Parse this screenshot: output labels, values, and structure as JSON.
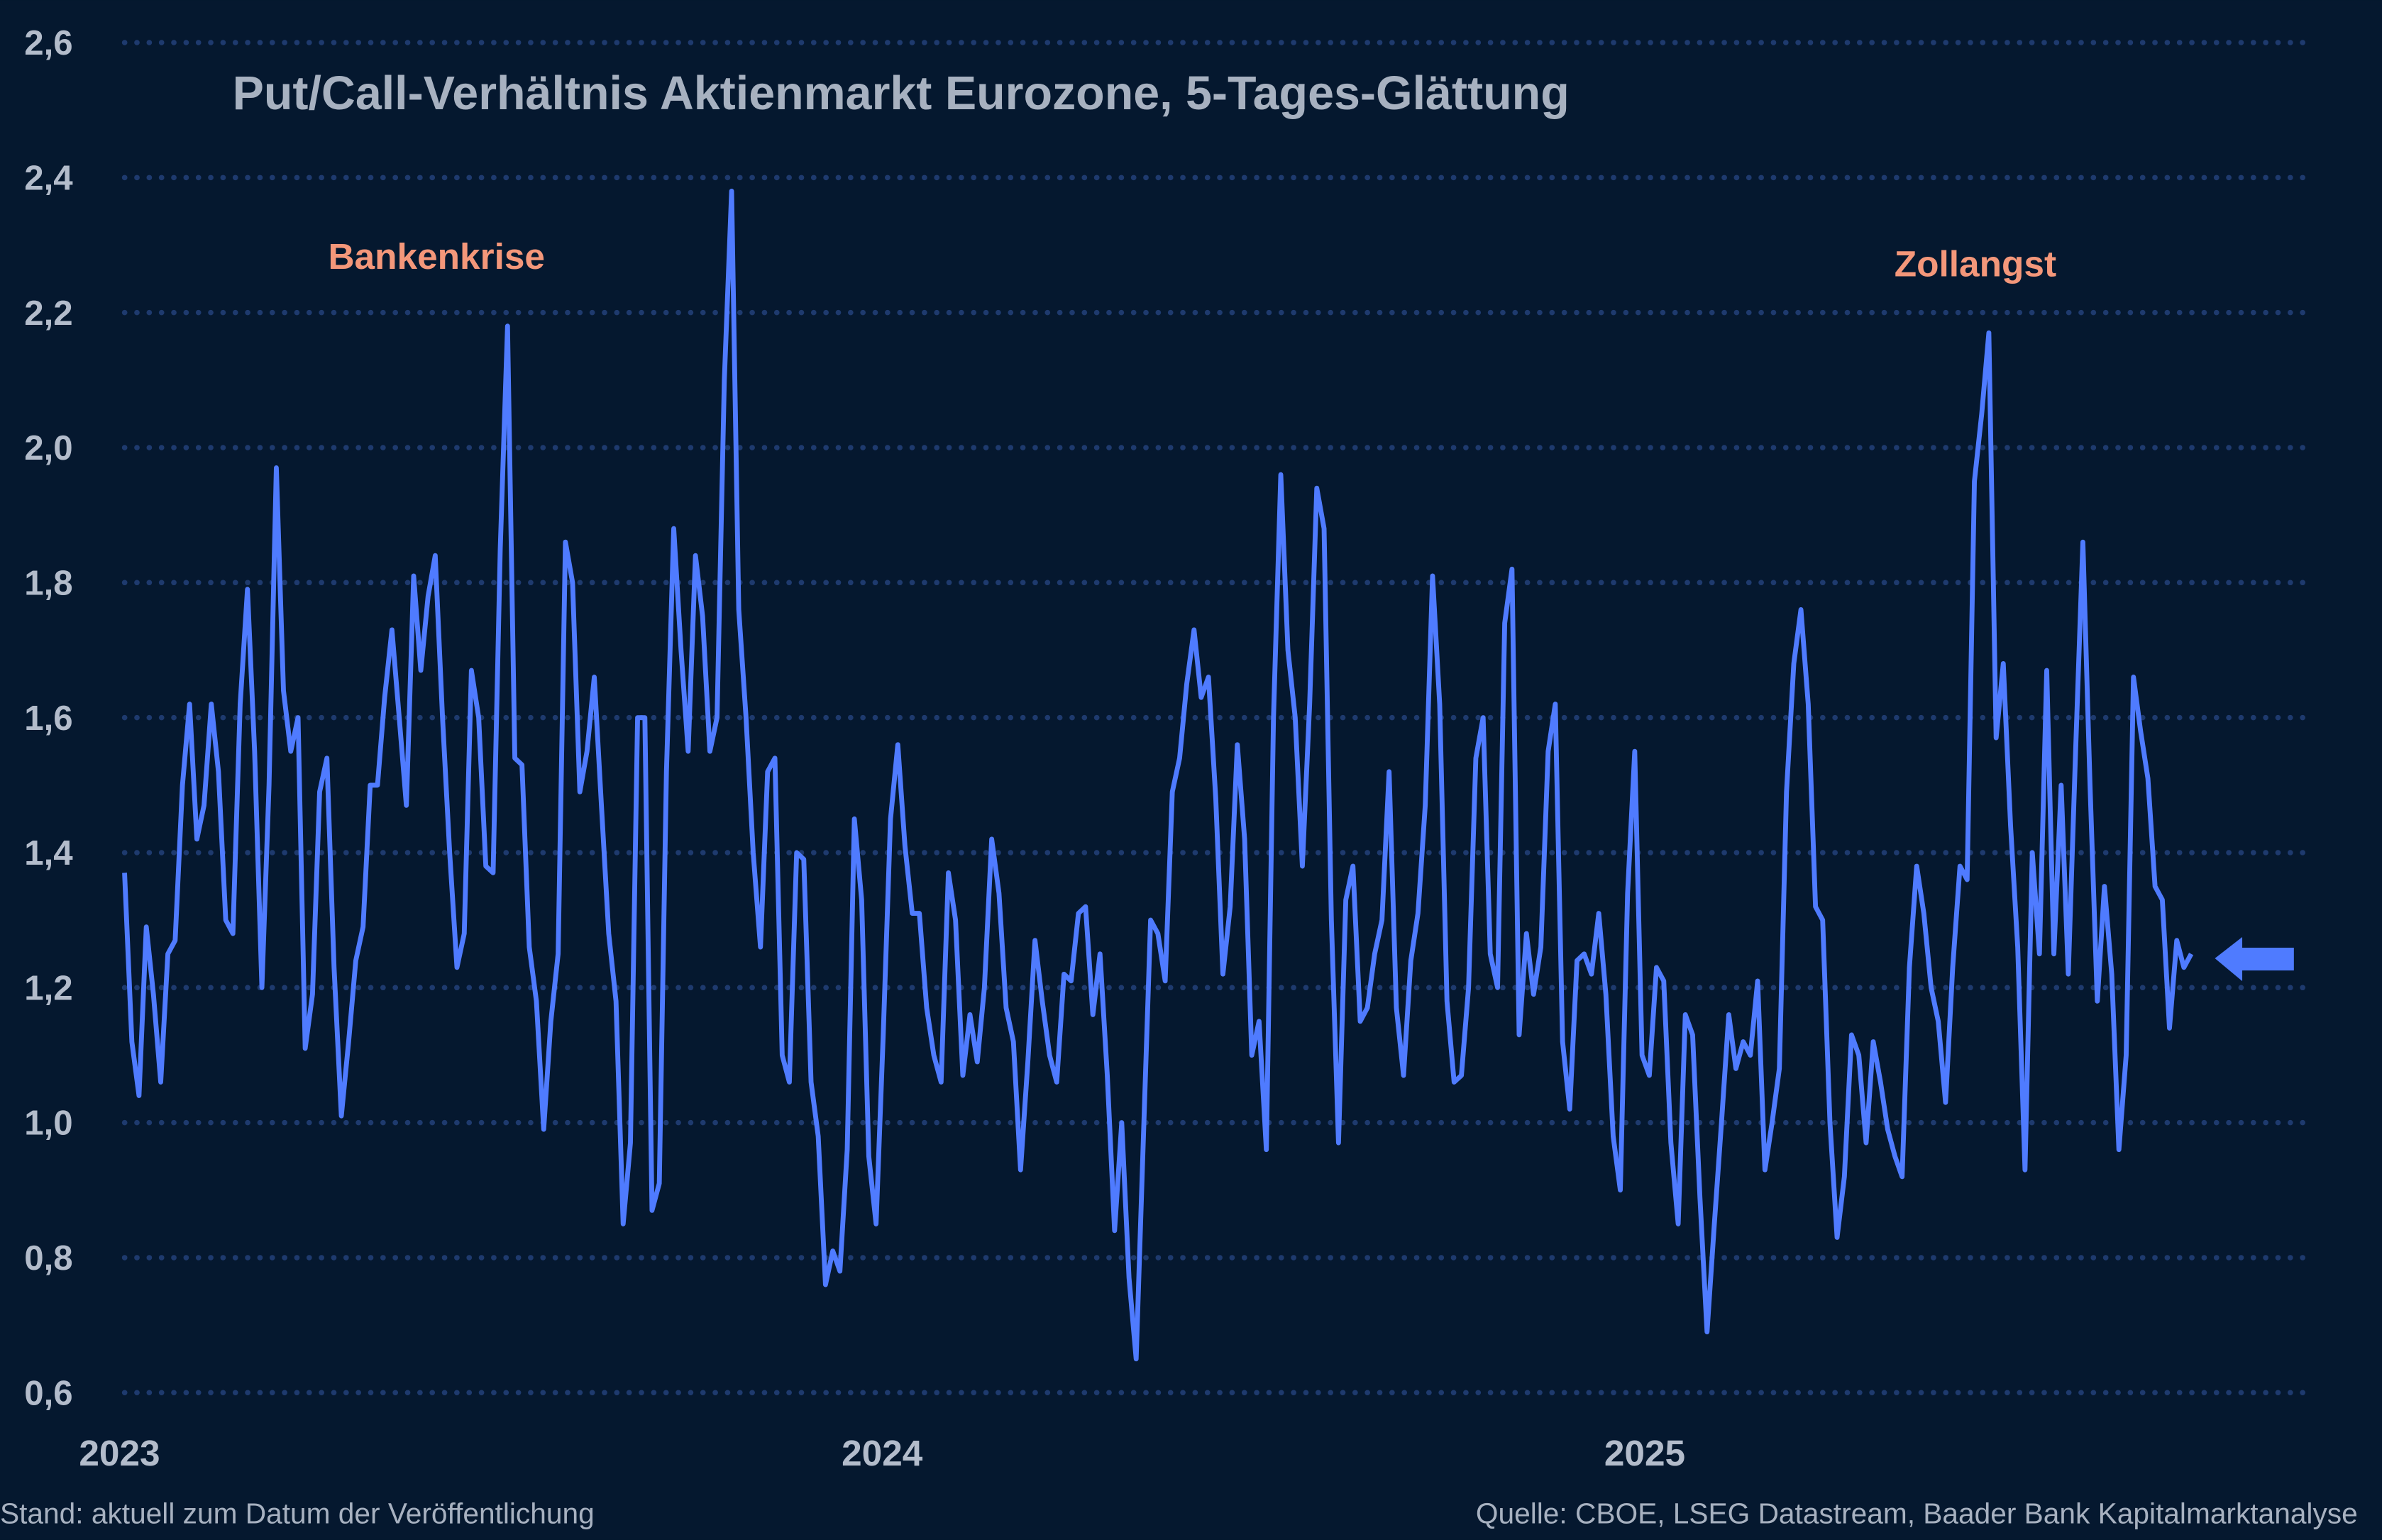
{
  "colors": {
    "background": "#05182f",
    "line": "#4f7bff",
    "grid": "#1e3a6e",
    "annotation": "#f4977a",
    "title": "#a7b1c0",
    "ticks": "#b3bccb"
  },
  "chart_data": {
    "type": "line",
    "title": "Put/Call-Verhältnis Aktienmarkt Eurozone, 5-Tages-Glättung",
    "xlabel": "",
    "ylabel": "",
    "ylim": [
      0.6,
      2.6
    ],
    "yticks": [
      "0,6",
      "0,8",
      "1,0",
      "1,2",
      "1,4",
      "1,6",
      "1,8",
      "2,0",
      "2,2",
      "2,4",
      "2,6"
    ],
    "xticks": [
      "2023",
      "2024",
      "2025"
    ],
    "x_range": [
      "2023-01",
      "2025-09"
    ],
    "grid": "horizontal dotted",
    "legend": "none",
    "annotations": [
      {
        "text": "Bankenkrise",
        "x": "2023-03"
      },
      {
        "text": "Zollangst",
        "x": "2025-04"
      }
    ],
    "current_value_marker": "arrow-left-icon",
    "values": [
      1.37,
      1.12,
      1.04,
      1.29,
      1.19,
      1.06,
      1.25,
      1.27,
      1.5,
      1.62,
      1.42,
      1.47,
      1.62,
      1.52,
      1.3,
      1.28,
      1.62,
      1.79,
      1.55,
      1.2,
      1.5,
      1.97,
      1.64,
      1.55,
      1.6,
      1.11,
      1.19,
      1.49,
      1.54,
      1.23,
      1.01,
      1.12,
      1.24,
      1.29,
      1.5,
      1.5,
      1.63,
      1.73,
      1.6,
      1.47,
      1.81,
      1.67,
      1.78,
      1.84,
      1.6,
      1.4,
      1.23,
      1.28,
      1.67,
      1.6,
      1.38,
      1.37,
      1.85,
      2.18,
      1.54,
      1.53,
      1.26,
      1.18,
      0.99,
      1.15,
      1.25,
      1.86,
      1.8,
      1.49,
      1.55,
      1.66,
      1.47,
      1.28,
      1.18,
      0.85,
      0.97,
      1.6,
      1.6,
      0.87,
      0.91,
      1.52,
      1.88,
      1.7,
      1.55,
      1.84,
      1.75,
      1.55,
      1.6,
      2.1,
      2.38,
      1.76,
      1.6,
      1.4,
      1.26,
      1.52,
      1.54,
      1.1,
      1.06,
      1.4,
      1.39,
      1.06,
      0.98,
      0.76,
      0.81,
      0.78,
      0.96,
      1.45,
      1.33,
      0.95,
      0.85,
      1.13,
      1.45,
      1.56,
      1.41,
      1.31,
      1.31,
      1.17,
      1.1,
      1.06,
      1.37,
      1.3,
      1.07,
      1.16,
      1.09,
      1.2,
      1.42,
      1.34,
      1.17,
      1.12,
      0.93,
      1.09,
      1.27,
      1.18,
      1.1,
      1.06,
      1.22,
      1.21,
      1.31,
      1.32,
      1.16,
      1.25,
      1.07,
      0.84,
      1.0,
      0.77,
      0.65,
      0.98,
      1.3,
      1.28,
      1.21,
      1.49,
      1.54,
      1.65,
      1.73,
      1.63,
      1.66,
      1.48,
      1.22,
      1.32,
      1.56,
      1.42,
      1.1,
      1.15,
      0.96,
      1.6,
      1.96,
      1.7,
      1.6,
      1.38,
      1.62,
      1.94,
      1.88,
      1.3,
      0.97,
      1.33,
      1.38,
      1.15,
      1.17,
      1.25,
      1.3,
      1.52,
      1.17,
      1.07,
      1.24,
      1.31,
      1.47,
      1.81,
      1.62,
      1.18,
      1.06,
      1.07,
      1.2,
      1.54,
      1.6,
      1.25,
      1.2,
      1.74,
      1.82,
      1.13,
      1.28,
      1.19,
      1.26,
      1.55,
      1.62,
      1.12,
      1.02,
      1.24,
      1.25,
      1.22,
      1.31,
      1.19,
      0.98,
      0.9,
      1.34,
      1.55,
      1.1,
      1.07,
      1.23,
      1.21,
      0.97,
      0.85,
      1.16,
      1.13,
      0.89,
      0.69,
      0.85,
      1.0,
      1.16,
      1.08,
      1.12,
      1.1,
      1.21,
      0.93,
      1.0,
      1.08,
      1.49,
      1.68,
      1.76,
      1.62,
      1.32,
      1.3,
      1.0,
      0.83,
      0.92,
      1.13,
      1.1,
      0.97,
      1.12,
      1.06,
      0.99,
      0.95,
      0.92,
      1.23,
      1.38,
      1.31,
      1.2,
      1.15,
      1.03,
      1.23,
      1.38,
      1.36,
      1.95,
      2.05,
      2.17,
      1.57,
      1.68,
      1.44,
      1.26,
      0.93,
      1.4,
      1.25,
      1.67,
      1.25,
      1.5,
      1.22,
      1.55,
      1.86,
      1.5,
      1.18,
      1.35,
      1.22,
      0.96,
      1.1,
      1.66,
      1.58,
      1.51,
      1.35,
      1.33,
      1.14,
      1.27,
      1.23,
      1.25
    ]
  },
  "footer": {
    "left": "Stand: aktuell zum Datum der Veröffentlichung",
    "right": "Quelle: CBOE, LSEG Datastream, Baader Bank Kapitalmarktanalyse"
  }
}
